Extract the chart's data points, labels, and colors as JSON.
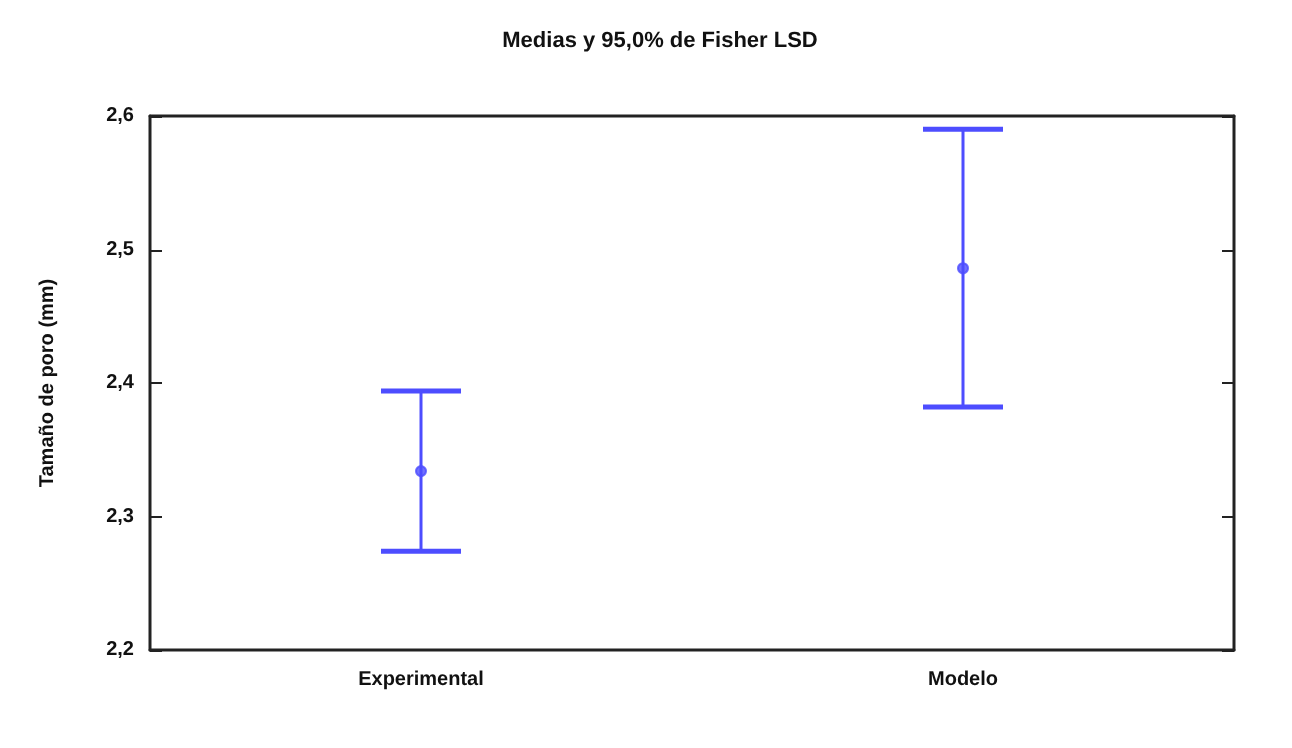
{
  "chart_data": {
    "type": "scatter",
    "title": "Medias y 95,0% de Fisher LSD",
    "ylabel": "Tamaño de poro (mm)",
    "categories": [
      "Experimental",
      "Modelo"
    ],
    "series": [
      {
        "color": "#4d4dff",
        "values": [
          2.334,
          2.486
        ],
        "errors": [
          0.06,
          0.104
        ]
      }
    ],
    "ylim": [
      2.2,
      2.6
    ],
    "yticks": [
      {
        "value": 2.2,
        "label": "2,2"
      },
      {
        "value": 2.3,
        "label": "2,3"
      },
      {
        "value": 2.4,
        "label": "2,4"
      },
      {
        "value": 2.5,
        "label": "2,5"
      },
      {
        "value": 2.6,
        "label": "2,6"
      }
    ],
    "grid": false,
    "marker": "circle"
  }
}
